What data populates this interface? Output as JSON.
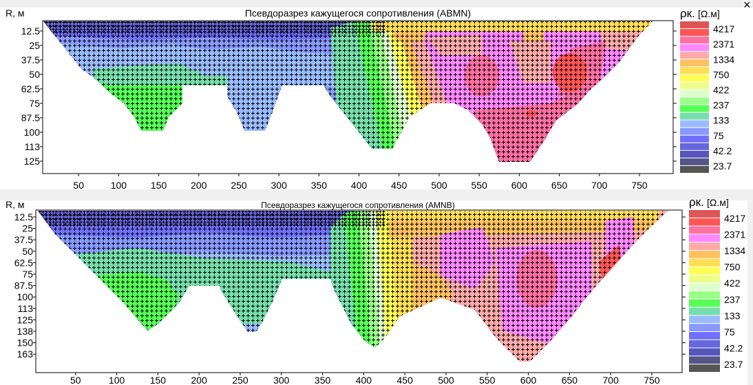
{
  "window": {
    "close_label": "×"
  },
  "legend": {
    "unit_symbol": "ρк.",
    "unit": "[Ω.м]",
    "labels": [
      "4217",
      "2371",
      "1334",
      "750",
      "422",
      "237",
      "133",
      "75",
      "42.2",
      "23.7"
    ],
    "colors": [
      "#dd5555",
      "#ff5555",
      "#ff70a0",
      "#ff88ff",
      "#ffaaaa",
      "#ffc060",
      "#ffdd55",
      "#ffff55",
      "#eeff88",
      "#ddffcc",
      "#99ff88",
      "#55ff55",
      "#77ddaa",
      "#99bbff",
      "#8899ff",
      "#7070ff",
      "#6666dd",
      "#5555bb",
      "#555588",
      "#555555"
    ]
  },
  "chart_data": [
    {
      "type": "heatmap",
      "title": "Псевдоразрез кажущегося сопротивления (ABMN)",
      "ylabel": "R, м",
      "xlabel": "",
      "x_ticks": [
        "50",
        "100",
        "150",
        "200",
        "250",
        "300",
        "350",
        "400",
        "450",
        "500",
        "550",
        "600",
        "650",
        "700",
        "750"
      ],
      "y_ticks": [
        "12.5",
        "25",
        "37.5",
        "50",
        "62.5",
        "75",
        "87.5",
        "100",
        "113",
        "125"
      ],
      "legend_title": "ρк. [Ω.м]",
      "legend_levels": [
        "4217",
        "2371",
        "1334",
        "750",
        "422",
        "237",
        "133",
        "75",
        "42.2",
        "23.7"
      ]
    },
    {
      "type": "heatmap",
      "title": "Псевдоразрез кажущегося сопротивления (AMNB)",
      "ylabel": "R, м",
      "xlabel": "",
      "x_ticks": [
        "50",
        "100",
        "150",
        "200",
        "250",
        "300",
        "350",
        "400",
        "450",
        "500",
        "550",
        "600",
        "650",
        "700",
        "750"
      ],
      "y_ticks": [
        "12.5",
        "25",
        "37.5",
        "50",
        "62.5",
        "75",
        "87.5",
        "100",
        "113",
        "125",
        "138",
        "150",
        "163"
      ],
      "legend_title": "ρк. [Ω.м]",
      "legend_levels": [
        "4217",
        "2371",
        "1334",
        "750",
        "422",
        "237",
        "133",
        "75",
        "42.2",
        "23.7"
      ]
    }
  ]
}
